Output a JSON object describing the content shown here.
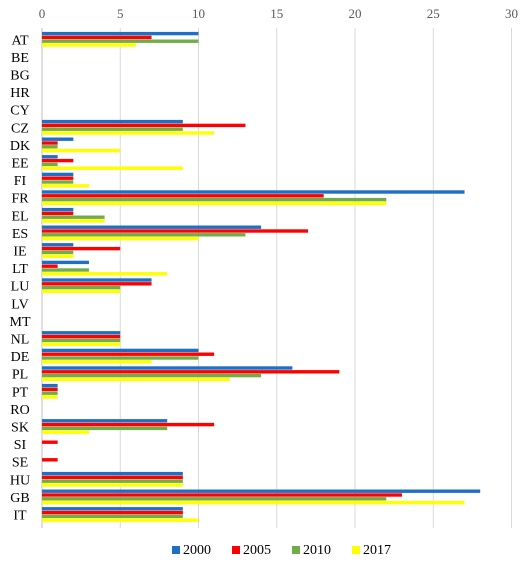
{
  "chart_data": {
    "type": "bar",
    "orientation": "horizontal",
    "title": "",
    "xlabel": "",
    "ylabel": "",
    "xlim": [
      0,
      30
    ],
    "x_ticks": [
      0,
      5,
      10,
      15,
      20,
      25,
      30
    ],
    "grid": "vertical",
    "legend_position": "bottom",
    "categories": [
      "AT",
      "BE",
      "BG",
      "HR",
      "CY",
      "CZ",
      "DK",
      "EE",
      "FI",
      "FR",
      "EL",
      "ES",
      "IE",
      "LT",
      "LU",
      "LV",
      "MT",
      "NL",
      "DE",
      "PL",
      "PT",
      "RO",
      "SK",
      "SI",
      "SE",
      "HU",
      "GB",
      "IT"
    ],
    "series": [
      {
        "name": "2000",
        "color": "#1f6fc4",
        "values": [
          10,
          0,
          0,
          0,
          0,
          9,
          2,
          1,
          2,
          27,
          2,
          14,
          2,
          3,
          7,
          0,
          0,
          5,
          10,
          16,
          1,
          0,
          8,
          0,
          0,
          9,
          28,
          9
        ]
      },
      {
        "name": "2005",
        "color": "#ff0000",
        "values": [
          7,
          0,
          0,
          0,
          0,
          13,
          1,
          2,
          2,
          18,
          2,
          17,
          5,
          1,
          7,
          0,
          0,
          5,
          11,
          19,
          1,
          0,
          11,
          1,
          1,
          9,
          23,
          9
        ]
      },
      {
        "name": "2010",
        "color": "#70ad47",
        "values": [
          10,
          0,
          0,
          0,
          0,
          9,
          1,
          1,
          2,
          22,
          4,
          13,
          2,
          3,
          5,
          0,
          0,
          5,
          10,
          14,
          1,
          0,
          8,
          0,
          0,
          9,
          22,
          9
        ]
      },
      {
        "name": "2017",
        "color": "#ffff00",
        "values": [
          6,
          0,
          0,
          0,
          0,
          11,
          5,
          9,
          3,
          22,
          4,
          10,
          2,
          8,
          5,
          0,
          0,
          5,
          7,
          12,
          1,
          0,
          3,
          0,
          0,
          9,
          27,
          10
        ]
      }
    ]
  }
}
